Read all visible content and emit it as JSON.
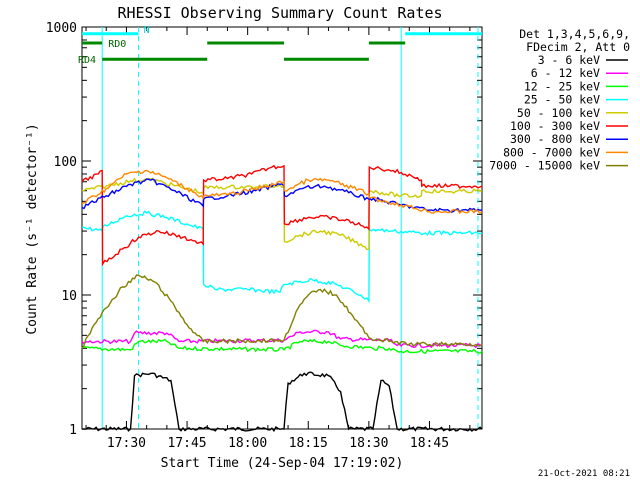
{
  "chart_data": {
    "type": "line",
    "title": "RHESSI Observing Summary Count Rates",
    "xlabel": "Start Time (24-Sep-04 17:19:02)",
    "ylabel": "Count Rate (s⁻¹ detector⁻¹)",
    "yscale": "log",
    "ylim": [
      1,
      1000
    ],
    "xlim": [
      "17:19",
      "18:58"
    ],
    "y_ticks": [
      "1",
      "10",
      "100",
      "1000"
    ],
    "x_ticks": [
      "17:30",
      "17:45",
      "18:00",
      "18:15",
      "18:30",
      "18:45"
    ],
    "timestamp": "21-Oct-2021 08:21",
    "legend_header": [
      "Det 1,3,4,5,6,9,",
      "FDecim 2, Att 0"
    ],
    "legend_position": "right",
    "series": [
      {
        "name": "3 - 6 keV",
        "color": "#000000",
        "points": [
          [
            "17:19",
            1
          ],
          [
            "17:31",
            1
          ],
          [
            "17:32",
            2.5
          ],
          [
            "17:36",
            2.6
          ],
          [
            "17:41",
            2.3
          ],
          [
            "17:43",
            1
          ],
          [
            "18:09",
            1
          ],
          [
            "18:10",
            2.2
          ],
          [
            "18:14",
            2.6
          ],
          [
            "18:20",
            2.5
          ],
          [
            "18:23",
            1.9
          ],
          [
            "18:25",
            1
          ],
          [
            "18:31",
            1
          ],
          [
            "18:33",
            2.3
          ],
          [
            "18:35",
            2.1
          ],
          [
            "18:37",
            1
          ],
          [
            "18:58",
            1
          ]
        ]
      },
      {
        "name": "6 - 12 keV",
        "color": "#ff00ff",
        "points": [
          [
            "17:19",
            4.5
          ],
          [
            "17:31",
            4.5
          ],
          [
            "17:32",
            5.2
          ],
          [
            "17:40",
            5.2
          ],
          [
            "17:43",
            4.5
          ],
          [
            "18:09",
            4.6
          ],
          [
            "18:13",
            5.3
          ],
          [
            "18:20",
            5.3
          ],
          [
            "18:23",
            4.7
          ],
          [
            "18:31",
            4.6
          ],
          [
            "18:35",
            4.6
          ],
          [
            "18:37",
            4.2
          ],
          [
            "18:58",
            4.2
          ]
        ]
      },
      {
        "name": "12 - 25 keV",
        "color": "#00ff00",
        "points": [
          [
            "17:19",
            4
          ],
          [
            "17:31",
            3.9
          ],
          [
            "17:33",
            4.5
          ],
          [
            "17:40",
            4.5
          ],
          [
            "17:43",
            4
          ],
          [
            "18:09",
            3.9
          ],
          [
            "18:13",
            4.5
          ],
          [
            "18:20",
            4.5
          ],
          [
            "18:23",
            4.2
          ],
          [
            "18:31",
            4
          ],
          [
            "18:35",
            4
          ],
          [
            "18:37",
            3.8
          ],
          [
            "18:58",
            3.8
          ]
        ]
      },
      {
        "name": "25 - 50 keV",
        "color": "#00ffff",
        "points": [
          [
            "17:19",
            32
          ],
          [
            "17:24",
            30
          ],
          [
            "17:24.1",
            32
          ],
          [
            "17:30",
            39
          ],
          [
            "17:35",
            41
          ],
          [
            "17:40",
            38
          ],
          [
            "17:46",
            33
          ],
          [
            "17:49",
            31
          ],
          [
            "17:49.1",
            12
          ],
          [
            "17:52",
            11
          ],
          [
            "18:00",
            11
          ],
          [
            "18:08",
            10.5
          ],
          [
            "18:09",
            12
          ],
          [
            "18:16",
            13
          ],
          [
            "18:22",
            12
          ],
          [
            "18:28",
            10
          ],
          [
            "18:30",
            9
          ],
          [
            "18:30.1",
            31
          ],
          [
            "18:36",
            30
          ],
          [
            "18:44",
            29
          ],
          [
            "18:52",
            29
          ],
          [
            "18:58",
            29
          ]
        ]
      },
      {
        "name": "50 - 100 keV",
        "color": "#cccc00",
        "points": [
          [
            "17:19",
            60
          ],
          [
            "17:25",
            65
          ],
          [
            "17:31",
            71
          ],
          [
            "17:36",
            73
          ],
          [
            "17:44",
            63
          ],
          [
            "17:49",
            58
          ],
          [
            "17:49.1",
            63
          ],
          [
            "17:55",
            64
          ],
          [
            "18:02",
            64
          ],
          [
            "18:07",
            65
          ],
          [
            "18:08",
            66
          ],
          [
            "18:09",
            65
          ],
          [
            "18:09.1",
            25
          ],
          [
            "18:13",
            28
          ],
          [
            "18:18",
            30
          ],
          [
            "18:23",
            28
          ],
          [
            "18:29",
            23
          ],
          [
            "18:30",
            22
          ],
          [
            "18:30.1",
            60
          ],
          [
            "18:38",
            55
          ],
          [
            "18:43",
            55
          ],
          [
            "18:43.1",
            60
          ],
          [
            "18:50",
            59
          ],
          [
            "18:58",
            60
          ]
        ]
      },
      {
        "name": "100 - 300 keV",
        "color": "#ff0000",
        "points": [
          [
            "17:19",
            70
          ],
          [
            "17:23",
            80
          ],
          [
            "17:24",
            85
          ],
          [
            "17:24.1",
            17
          ],
          [
            "17:29",
            22
          ],
          [
            "17:33",
            27
          ],
          [
            "17:38",
            30
          ],
          [
            "17:44",
            27
          ],
          [
            "17:49",
            24
          ],
          [
            "17:49.1",
            72
          ],
          [
            "17:55",
            74
          ],
          [
            "18:01",
            80
          ],
          [
            "18:06",
            90
          ],
          [
            "18:09",
            92
          ],
          [
            "18:09.1",
            34
          ],
          [
            "18:15",
            38
          ],
          [
            "18:20",
            38
          ],
          [
            "18:26",
            35
          ],
          [
            "18:30",
            31
          ],
          [
            "18:30.1",
            90
          ],
          [
            "18:36",
            85
          ],
          [
            "18:42",
            75
          ],
          [
            "18:43",
            72
          ],
          [
            "18:43.1",
            65
          ],
          [
            "18:50",
            65
          ],
          [
            "18:58",
            65
          ]
        ]
      },
      {
        "name": "300 - 800 keV",
        "color": "#0000ff",
        "points": [
          [
            "17:19",
            45
          ],
          [
            "17:25",
            55
          ],
          [
            "17:31",
            67
          ],
          [
            "17:36",
            72
          ],
          [
            "17:42",
            60
          ],
          [
            "17:49",
            46
          ],
          [
            "17:49.1",
            52
          ],
          [
            "17:55",
            55
          ],
          [
            "18:02",
            60
          ],
          [
            "18:08",
            67
          ],
          [
            "18:09",
            65
          ],
          [
            "18:09.1",
            55
          ],
          [
            "18:14",
            63
          ],
          [
            "18:19",
            65
          ],
          [
            "18:25",
            58
          ],
          [
            "18:30",
            52
          ],
          [
            "18:30.1",
            53
          ],
          [
            "18:38",
            47
          ],
          [
            "18:45",
            43
          ],
          [
            "18:58",
            43
          ]
        ]
      },
      {
        "name": "800 - 7000 keV",
        "color": "#ff8800",
        "points": [
          [
            "17:19",
            48
          ],
          [
            "17:25",
            62
          ],
          [
            "17:30",
            80
          ],
          [
            "17:35",
            85
          ],
          [
            "17:40",
            75
          ],
          [
            "17:47",
            58
          ],
          [
            "17:49",
            53
          ],
          [
            "17:49.1",
            55
          ],
          [
            "17:55",
            56
          ],
          [
            "18:02",
            62
          ],
          [
            "18:09",
            70
          ],
          [
            "18:09.1",
            60
          ],
          [
            "18:15",
            72
          ],
          [
            "18:20",
            72
          ],
          [
            "18:26",
            63
          ],
          [
            "18:30",
            57
          ],
          [
            "18:30.1",
            53
          ],
          [
            "18:38",
            47
          ],
          [
            "18:45",
            42
          ],
          [
            "18:58",
            42
          ]
        ]
      },
      {
        "name": "7000 - 15000 keV",
        "color": "#808000",
        "points": [
          [
            "17:19",
            4
          ],
          [
            "17:22",
            6
          ],
          [
            "17:25",
            8
          ],
          [
            "17:29",
            11.5
          ],
          [
            "17:33",
            14
          ],
          [
            "17:37",
            12.5
          ],
          [
            "17:41",
            9
          ],
          [
            "17:45",
            6
          ],
          [
            "17:49",
            4.5
          ],
          [
            "18:09",
            4.6
          ],
          [
            "18:12",
            7.5
          ],
          [
            "18:15",
            10
          ],
          [
            "18:18",
            11
          ],
          [
            "18:22",
            10
          ],
          [
            "18:26",
            7
          ],
          [
            "18:30",
            4.8
          ],
          [
            "18:35",
            4.5
          ],
          [
            "18:40",
            4.3
          ],
          [
            "18:58",
            4.3
          ]
        ]
      }
    ],
    "state_bars": [
      {
        "label": "N",
        "color": "#00ffff",
        "level": 890,
        "segments": [
          [
            "17:19",
            "17:33"
          ],
          [
            "18:39",
            "18:58"
          ]
        ]
      },
      {
        "label": "RD0",
        "color": "#008800",
        "level": 760,
        "segments": [
          [
            "17:19",
            "17:24"
          ],
          [
            "17:50",
            "18:09"
          ],
          [
            "18:30",
            "18:39"
          ]
        ]
      },
      {
        "label": "RD4",
        "color": "#008800",
        "level": 575,
        "segments": [
          [
            "17:24",
            "17:50"
          ],
          [
            "18:09",
            "18:30"
          ]
        ]
      }
    ],
    "markers": [
      {
        "time": "17:24",
        "style": "solid",
        "color": "#00ffff"
      },
      {
        "time": "17:33",
        "style": "dashed",
        "color": "#00ffff"
      },
      {
        "time": "18:38",
        "style": "solid",
        "color": "#00ffff"
      },
      {
        "time": "18:57",
        "style": "dashed",
        "color": "#00ffff"
      }
    ]
  }
}
